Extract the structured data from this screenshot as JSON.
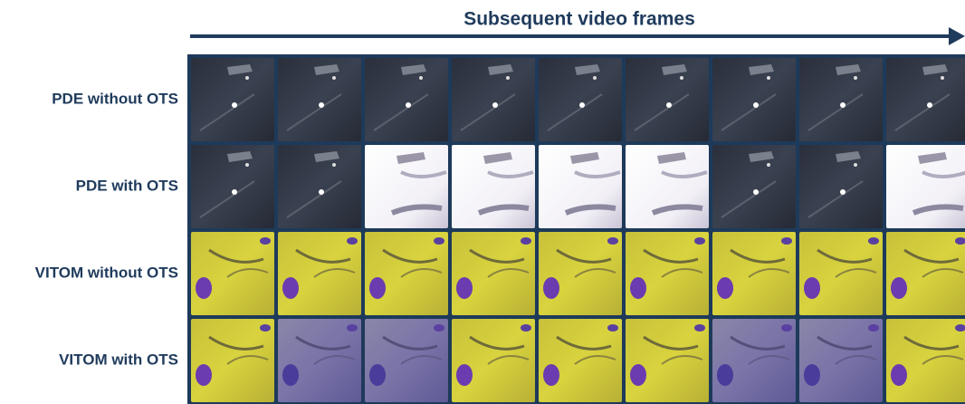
{
  "header": {
    "title": "Subsequent video frames"
  },
  "rows": [
    {
      "label": "PDE without OTS"
    },
    {
      "label": "PDE with OTS"
    },
    {
      "label": "VITOM without OTS"
    },
    {
      "label": "VITOM with OTS"
    }
  ]
}
